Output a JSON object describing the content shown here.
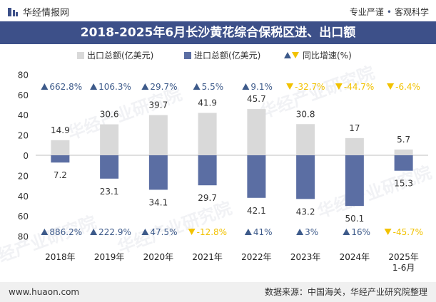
{
  "header": {
    "brand": "华经情报网",
    "tagline_left": "专业严谨",
    "tagline_right": "客观科学"
  },
  "title": "2018-2025年6月长沙黄花综合保税区进、出口额",
  "footer": {
    "url": "www.huaon.com",
    "source": "数据来源：中国海关，华经产业研究院整理"
  },
  "watermarks": [
    "华经产业研究院",
    "华经产业研究院",
    "华经产业研究院",
    "华经产业研究院",
    "华经产业研究院"
  ],
  "colors": {
    "export": "#d9d9d9",
    "import": "#5b6ea3",
    "up": "#3d5a8a",
    "down": "#f2c200",
    "title_bg": "#3d5089"
  },
  "chart_data": {
    "type": "bar",
    "title": "2018-2025年6月长沙黄花综合保税区进、出口额",
    "categories": [
      "2018年",
      "2019年",
      "2020年",
      "2021年",
      "2022年",
      "2023年",
      "2024年",
      "2025年\n1-6月"
    ],
    "series": [
      {
        "name": "出口总额(亿美元)",
        "values": [
          14.9,
          30.6,
          39.7,
          41.9,
          45.7,
          30.8,
          17,
          5.7
        ],
        "direction": "up"
      },
      {
        "name": "进口总额(亿美元)",
        "values": [
          7.2,
          23.1,
          34.1,
          29.7,
          42.1,
          43.2,
          50.1,
          15.3
        ],
        "direction": "down"
      }
    ],
    "growth_legend": "同比增速(%)",
    "export_growth": [
      "662.8%",
      "106.3%",
      "29.7%",
      "5.5%",
      "9.1%",
      "-32.7%",
      "-44.7%",
      "-6.4%"
    ],
    "import_growth": [
      "886.2%",
      "222.9%",
      "47.5%",
      "-12.8%",
      "41%",
      "3%",
      "16%",
      "-45.7%"
    ],
    "yticks": [
      80,
      60,
      40,
      20,
      0,
      20,
      40,
      60,
      80
    ],
    "ylim": [
      -80,
      80
    ],
    "xlabel": "",
    "ylabel": ""
  }
}
